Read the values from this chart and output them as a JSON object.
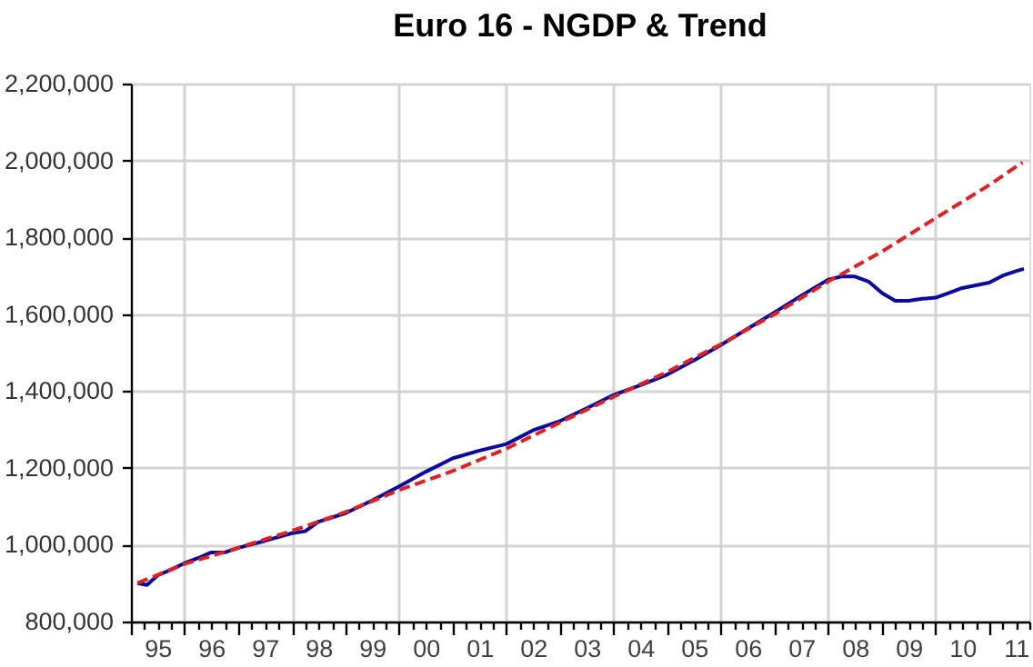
{
  "chart_data": {
    "type": "line",
    "title": "Euro 16  - NGDP & Trend",
    "xlim": [
      "1995",
      "2011-10"
    ],
    "xticks": [
      {
        "value": "1995",
        "label": null
      },
      {
        "value": "1995-04",
        "label": null
      },
      {
        "value": "1995-07",
        "label": "95"
      },
      {
        "value": "1995-10",
        "label": null
      },
      {
        "value": "1996",
        "label": null
      },
      {
        "value": "1996-04",
        "label": null
      },
      {
        "value": "1996-07",
        "label": "96"
      },
      {
        "value": "1996-10",
        "label": null
      },
      {
        "value": "1997",
        "label": null
      },
      {
        "value": "1997-04",
        "label": null
      },
      {
        "value": "1997-07",
        "label": "97"
      },
      {
        "value": "1997-10",
        "label": null
      },
      {
        "value": "1998",
        "label": null
      },
      {
        "value": "1998-04",
        "label": null
      },
      {
        "value": "1998-07",
        "label": "98"
      },
      {
        "value": "1998-10",
        "label": null
      },
      {
        "value": "1999",
        "label": null
      },
      {
        "value": "1999-04",
        "label": null
      },
      {
        "value": "1999-07",
        "label": "99"
      },
      {
        "value": "1999-10",
        "label": null
      },
      {
        "value": "2000",
        "label": null
      },
      {
        "value": "2000-04",
        "label": null
      },
      {
        "value": "2000-07",
        "label": "00"
      },
      {
        "value": "2000-10",
        "label": null
      },
      {
        "value": "2001",
        "label": null
      },
      {
        "value": "2001-04",
        "label": null
      },
      {
        "value": "2001-07",
        "label": "01"
      },
      {
        "value": "2001-10",
        "label": null
      },
      {
        "value": "2002",
        "label": null
      },
      {
        "value": "2002-04",
        "label": null
      },
      {
        "value": "2002-07",
        "label": "02"
      },
      {
        "value": "2002-10",
        "label": null
      },
      {
        "value": "2003",
        "label": null
      },
      {
        "value": "2003-04",
        "label": null
      },
      {
        "value": "2003-07",
        "label": "03"
      },
      {
        "value": "2003-10",
        "label": null
      },
      {
        "value": "2004",
        "label": null
      },
      {
        "value": "2004-04",
        "label": null
      },
      {
        "value": "2004-07",
        "label": "04"
      },
      {
        "value": "2004-10",
        "label": null
      },
      {
        "value": "2005",
        "label": null
      },
      {
        "value": "2005-04",
        "label": null
      },
      {
        "value": "2005-07",
        "label": "05"
      },
      {
        "value": "2005-10",
        "label": null
      },
      {
        "value": "2006",
        "label": null
      },
      {
        "value": "2006-04",
        "label": null
      },
      {
        "value": "2006-07",
        "label": "06"
      },
      {
        "value": "2006-10",
        "label": null
      },
      {
        "value": "2007",
        "label": null
      },
      {
        "value": "2007-04",
        "label": null
      },
      {
        "value": "2007-07",
        "label": "07"
      },
      {
        "value": "2007-10",
        "label": null
      },
      {
        "value": "2008",
        "label": null
      },
      {
        "value": "2008-04",
        "label": null
      },
      {
        "value": "2008-07",
        "label": "08"
      },
      {
        "value": "2008-10",
        "label": null
      },
      {
        "value": "2009",
        "label": null
      },
      {
        "value": "2009-04",
        "label": null
      },
      {
        "value": "2009-07",
        "label": "09"
      },
      {
        "value": "2009-10",
        "label": null
      },
      {
        "value": "2010",
        "label": null
      },
      {
        "value": "2010-04",
        "label": null
      },
      {
        "value": "2010-07",
        "label": "10"
      },
      {
        "value": "2010-10",
        "label": null
      },
      {
        "value": "2011",
        "label": null
      },
      {
        "value": "2011-04",
        "label": null
      },
      {
        "value": "2011-07",
        "label": "11"
      },
      {
        "value": "2011-10",
        "label": null
      }
    ],
    "ylim": [
      800000,
      2200000
    ],
    "yticks": [
      {
        "value": 800000,
        "label": "800,000"
      },
      {
        "value": 1000000,
        "label": "1,000,000"
      },
      {
        "value": 1200000,
        "label": "1,200,000"
      },
      {
        "value": 1400000,
        "label": "1,400,000"
      },
      {
        "value": 1600000,
        "label": "1,600,000"
      },
      {
        "value": 1800000,
        "label": "1,800,000"
      },
      {
        "value": 2000000,
        "label": "2,000,000"
      },
      {
        "value": 2200000,
        "label": "2,200,000"
      }
    ],
    "grid": true,
    "series": [
      {
        "color": "#0a0a9e",
        "line_style": "solid",
        "x": [
          "1995-02-15",
          "1995-04-20",
          "1995-07",
          "1995-10",
          "1996",
          "1996-04",
          "1996-07",
          "1996-10",
          "1997",
          "1997-07",
          "1998",
          "1998-04",
          "1998-07",
          "1999",
          "1999-07",
          "2000",
          "2000-07",
          "2001",
          "2001-07",
          "2002",
          "2002-07",
          "2003",
          "2003-07",
          "2004",
          "2004-07",
          "2005",
          "2005-07",
          "2006",
          "2006-07",
          "2007",
          "2007-07",
          "2008",
          "2008-04",
          "2008-07",
          "2008-10",
          "2009",
          "2009-04",
          "2009-07",
          "2009-10",
          "2010",
          "2010-04",
          "2010-07",
          "2010-10",
          "2011",
          "2011-04",
          "2011-07",
          "2011-08-25"
        ],
        "values": [
          900000,
          895000,
          920000,
          935000,
          952000,
          965000,
          980000,
          980000,
          992000,
          1010000,
          1030000,
          1035000,
          1060000,
          1082000,
          1115000,
          1152000,
          1190000,
          1225000,
          1245000,
          1262000,
          1298000,
          1322000,
          1355000,
          1390000,
          1415000,
          1443000,
          1480000,
          1520000,
          1562000,
          1605000,
          1648000,
          1690000,
          1698000,
          1698000,
          1685000,
          1655000,
          1635000,
          1635000,
          1640000,
          1643000,
          1655000,
          1668000,
          1675000,
          1682000,
          1700000,
          1712000,
          1718000
        ]
      },
      {
        "color": "#dd2222",
        "line_style": "dashed",
        "x": [
          "1995-02-15",
          "1996",
          "1997",
          "1998",
          "1999",
          "2000",
          "2001",
          "2002",
          "2003",
          "2004",
          "2005",
          "2006",
          "2007",
          "2008",
          "2009",
          "2010",
          "2011",
          "2011-08-15"
        ],
        "values": [
          900000,
          950000,
          992000,
          1036000,
          1085000,
          1142000,
          1192000,
          1250000,
          1318000,
          1385000,
          1450000,
          1522000,
          1600000,
          1685000,
          1763000,
          1850000,
          1936000,
          1995000
        ]
      }
    ]
  }
}
